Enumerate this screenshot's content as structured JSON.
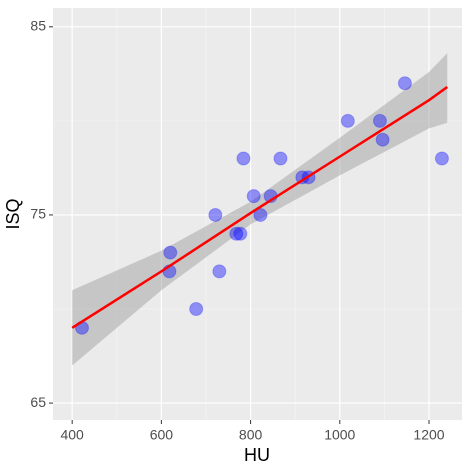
{
  "chart_data": {
    "type": "scatter",
    "x_label": "HU",
    "y_label": "ISQ",
    "series": [
      {
        "color": "#0000ff",
        "x": [
          422,
          620,
          618,
          678,
          721,
          730,
          768,
          777,
          784,
          807,
          822,
          845,
          867,
          916,
          930,
          1018,
          1090,
          1096,
          1146,
          1229
        ],
        "values": [
          69.0,
          73.0,
          72.0,
          70.0,
          75.0,
          72.0,
          74.0,
          74.0,
          78.0,
          76.0,
          75.0,
          76.0,
          78.0,
          77.0,
          77.0,
          80.0,
          80.0,
          79.0,
          82.0,
          78.0
        ]
      }
    ],
    "fit": {
      "color": "#ff0000",
      "band_color": "#999999",
      "x": [
        400,
        600,
        800,
        1000,
        1200,
        1241
      ],
      "values": [
        69.0,
        72.0,
        75.1,
        78.1,
        81.1,
        81.8
      ],
      "lower": [
        67.0,
        71.0,
        74.5,
        77.1,
        79.6,
        79.9
      ],
      "upper": [
        71.0,
        73.1,
        75.7,
        79.1,
        82.6,
        83.6
      ]
    },
    "xlim": [
      357,
      1274
    ],
    "ylim": [
      64.1,
      86.0
    ],
    "xticks": [
      400,
      600,
      800,
      1000,
      1200
    ],
    "yticks": [
      65,
      75,
      85
    ],
    "x_minor_ticks": [
      500,
      700,
      900,
      1100
    ],
    "y_minor_ticks": [
      70,
      80
    ],
    "grid": true
  }
}
